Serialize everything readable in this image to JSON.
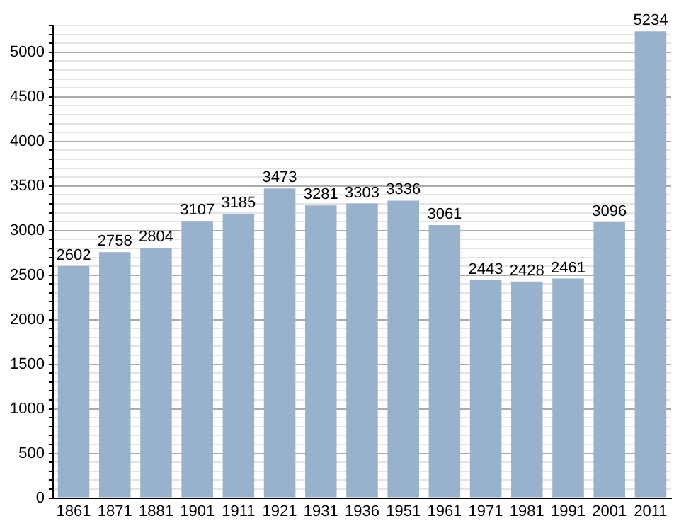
{
  "chart_data": {
    "type": "bar",
    "categories": [
      "1861",
      "1871",
      "1881",
      "1901",
      "1911",
      "1921",
      "1931",
      "1936",
      "1951",
      "1961",
      "1971",
      "1981",
      "1991",
      "2001",
      "2011"
    ],
    "values": [
      2602,
      2758,
      2804,
      3107,
      3185,
      3473,
      3281,
      3303,
      3336,
      3061,
      2443,
      2428,
      2461,
      3096,
      5234
    ],
    "color": "#98b1cc",
    "data_labels": true,
    "grid": "y",
    "ylim": [
      0,
      5300
    ],
    "yticks": [
      0,
      {
        "value": 100,
        "label": null
      },
      {
        "value": 200,
        "label": null
      },
      {
        "value": 300,
        "label": null
      },
      {
        "value": 400,
        "label": null
      },
      500,
      {
        "value": 600,
        "label": null
      },
      {
        "value": 700,
        "label": null
      },
      {
        "value": 800,
        "label": null
      },
      {
        "value": 900,
        "label": null
      },
      1000,
      {
        "value": 1100,
        "label": null
      },
      {
        "value": 1200,
        "label": null
      },
      {
        "value": 1300,
        "label": null
      },
      {
        "value": 1400,
        "label": null
      },
      1500,
      {
        "value": 1600,
        "label": null
      },
      {
        "value": 1700,
        "label": null
      },
      {
        "value": 1800,
        "label": null
      },
      {
        "value": 1900,
        "label": null
      },
      2000,
      {
        "value": 2100,
        "label": null
      },
      {
        "value": 2200,
        "label": null
      },
      {
        "value": 2300,
        "label": null
      },
      {
        "value": 2400,
        "label": null
      },
      2500,
      {
        "value": 2600,
        "label": null
      },
      {
        "value": 2700,
        "label": null
      },
      {
        "value": 2800,
        "label": null
      },
      {
        "value": 2900,
        "label": null
      },
      3000,
      {
        "value": 3100,
        "label": null
      },
      {
        "value": 3200,
        "label": null
      },
      {
        "value": 3300,
        "label": null
      },
      {
        "value": 3400,
        "label": null
      },
      3500,
      {
        "value": 3600,
        "label": null
      },
      {
        "value": 3700,
        "label": null
      },
      {
        "value": 3800,
        "label": null
      },
      {
        "value": 3900,
        "label": null
      },
      4000,
      {
        "value": 4100,
        "label": null
      },
      {
        "value": 4200,
        "label": null
      },
      {
        "value": 4300,
        "label": null
      },
      {
        "value": 4400,
        "label": null
      },
      4500,
      {
        "value": 4600,
        "label": null
      },
      {
        "value": 4700,
        "label": null
      },
      {
        "value": 4800,
        "label": null
      },
      {
        "value": 4900,
        "label": null
      },
      5000,
      {
        "value": 5100,
        "label": null
      },
      {
        "value": 5200,
        "label": null
      },
      {
        "value": 5300,
        "label": null
      }
    ]
  }
}
